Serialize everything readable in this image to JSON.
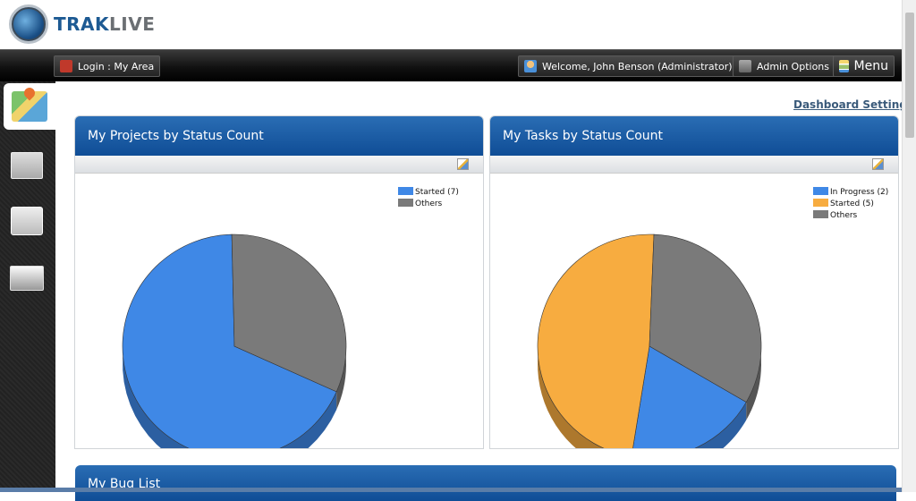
{
  "app": {
    "logo_trak": "TRAK",
    "logo_live": "LIVE"
  },
  "topbar": {
    "login": "Login : My Area",
    "welcome": "Welcome, John Benson (Administrator)",
    "admin": "Admin Options",
    "menu": "Menu"
  },
  "sidebar": {
    "items": [
      {
        "icon": "map-icon",
        "active": true
      },
      {
        "icon": "document-icon",
        "active": false
      },
      {
        "icon": "contact-card-icon",
        "active": false
      },
      {
        "icon": "photos-icon",
        "active": false
      }
    ]
  },
  "dashboard_setting": "Dashboard Setting",
  "panels": {
    "projects": {
      "title": "My Projects by Status Count"
    },
    "tasks": {
      "title": "My Tasks by Status Count"
    },
    "bugs": {
      "title": "My Bug List"
    }
  },
  "chart_data": [
    {
      "type": "pie",
      "legend_position": "top-right",
      "categories": [
        "Started (7)",
        "Others"
      ],
      "values": [
        7,
        3.3
      ],
      "colors": [
        "#3f88e6",
        "#7a7a7a"
      ]
    },
    {
      "type": "pie",
      "legend_position": "top-right",
      "categories": [
        "In Progress (2)",
        "Started (5)",
        "Others"
      ],
      "values": [
        2,
        5,
        3.4
      ],
      "colors": [
        "#3f88e6",
        "#f7ac40",
        "#7a7a7a"
      ]
    }
  ]
}
